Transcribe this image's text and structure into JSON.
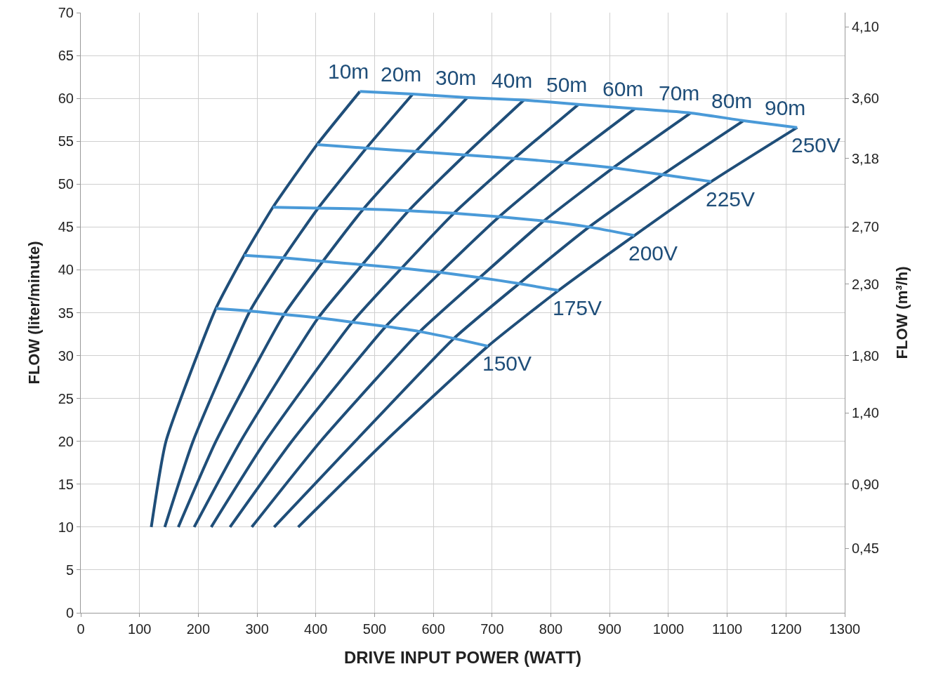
{
  "chart_data": {
    "type": "line",
    "xlabel": "DRIVE INPUT POWER (WATT)",
    "ylabel": "FLOW (liter/minute)",
    "y2label": "FLOW (m³/h)",
    "xlim": [
      0,
      1300
    ],
    "xticks": [
      0,
      100,
      200,
      300,
      400,
      500,
      600,
      700,
      800,
      900,
      1000,
      1100,
      1200,
      1300
    ],
    "ylim": [
      0,
      70
    ],
    "yticks": [
      0,
      5,
      10,
      15,
      20,
      25,
      30,
      35,
      40,
      45,
      50,
      55,
      60,
      65,
      70
    ],
    "y2lim": [
      0,
      4.2
    ],
    "y2ticks": [
      {
        "value": 0.45,
        "label": "0,45"
      },
      {
        "value": 0.9,
        "label": "0,90"
      },
      {
        "value": 1.4,
        "label": "1,40"
      },
      {
        "value": 1.8,
        "label": "1,80"
      },
      {
        "value": 2.3,
        "label": "2,30"
      },
      {
        "value": 2.7,
        "label": "2,70"
      },
      {
        "value": 3.18,
        "label": "3,18"
      },
      {
        "value": 3.6,
        "label": "3,60"
      },
      {
        "value": 4.1,
        "label": "4,10"
      }
    ],
    "grid": true,
    "legend": false,
    "marker": "none",
    "line_style": "solid",
    "series": [
      {
        "name": "10m",
        "color": "#1f4e79",
        "x": [
          120,
          145,
          230,
          278,
          327,
          402,
          475
        ],
        "values": [
          10,
          20,
          35.5,
          41.7,
          47.3,
          54.6,
          60.8
        ]
      },
      {
        "name": "20m",
        "color": "#1f4e79",
        "x": [
          143,
          191,
          288,
          345,
          404,
          486,
          565
        ],
        "values": [
          10,
          20,
          35.2,
          41.4,
          47.2,
          54.2,
          60.5
        ]
      },
      {
        "name": "30m",
        "color": "#1f4e79",
        "x": [
          166,
          230,
          346,
          412,
          481,
          570,
          658
        ],
        "values": [
          10,
          20,
          34.8,
          41.0,
          47.1,
          53.8,
          60.1
        ]
      },
      {
        "name": "40m",
        "color": "#1f4e79",
        "x": [
          193,
          272,
          404,
          479,
          558,
          654,
          754
        ],
        "values": [
          10,
          20,
          34.4,
          40.6,
          46.9,
          53.4,
          59.8
        ]
      },
      {
        "name": "50m",
        "color": "#1f4e79",
        "x": [
          222,
          314,
          462,
          546,
          635,
          738,
          847
        ],
        "values": [
          10,
          20,
          33.9,
          40.2,
          46.6,
          53.0,
          59.3
        ]
      },
      {
        "name": "60m",
        "color": "#1f4e79",
        "x": [
          254,
          359,
          519,
          612,
          712,
          822,
          943
        ],
        "values": [
          10,
          20,
          33.4,
          39.7,
          46.2,
          52.5,
          58.8
        ]
      },
      {
        "name": "70m",
        "color": "#1f4e79",
        "x": [
          291,
          408,
          577,
          679,
          788,
          906,
          1038
        ],
        "values": [
          10,
          20,
          32.8,
          39.1,
          45.7,
          51.9,
          58.3
        ]
      },
      {
        "name": "80m",
        "color": "#1f4e79",
        "x": [
          329,
          467,
          635,
          746,
          865,
          990,
          1128
        ],
        "values": [
          10,
          20,
          32.0,
          38.4,
          45.0,
          51.1,
          57.4
        ]
      },
      {
        "name": "90m",
        "color": "#1f4e79",
        "x": [
          370,
          518,
          693,
          813,
          942,
          1073,
          1219
        ],
        "values": [
          10,
          20,
          31.1,
          37.6,
          44.0,
          50.3,
          56.6
        ]
      },
      {
        "name": "250V",
        "color": "#4a9ad8",
        "x": [
          475,
          565,
          658,
          754,
          847,
          943,
          1038,
          1128,
          1219
        ],
        "values": [
          60.8,
          60.5,
          60.1,
          59.8,
          59.3,
          58.8,
          58.3,
          57.4,
          56.6
        ]
      },
      {
        "name": "225V",
        "color": "#4a9ad8",
        "x": [
          402,
          486,
          570,
          654,
          738,
          822,
          906,
          990,
          1073
        ],
        "values": [
          54.6,
          54.2,
          53.8,
          53.4,
          53.0,
          52.5,
          51.9,
          51.1,
          50.3
        ]
      },
      {
        "name": "200V",
        "color": "#4a9ad8",
        "x": [
          327,
          404,
          481,
          558,
          635,
          712,
          788,
          865,
          942
        ],
        "values": [
          47.3,
          47.2,
          47.1,
          46.9,
          46.6,
          46.2,
          45.7,
          45.0,
          44.0
        ]
      },
      {
        "name": "175V",
        "color": "#4a9ad8",
        "x": [
          278,
          345,
          412,
          479,
          546,
          612,
          679,
          746,
          813
        ],
        "values": [
          41.7,
          41.4,
          41.0,
          40.6,
          40.2,
          39.7,
          39.1,
          38.4,
          37.6
        ]
      },
      {
        "name": "150V",
        "color": "#4a9ad8",
        "x": [
          230,
          288,
          346,
          404,
          462,
          519,
          577,
          635,
          693
        ],
        "values": [
          35.5,
          35.2,
          34.8,
          34.4,
          33.9,
          33.4,
          32.8,
          32.0,
          31.1
        ]
      }
    ]
  }
}
